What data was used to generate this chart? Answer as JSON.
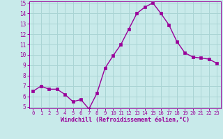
{
  "x": [
    0,
    1,
    2,
    3,
    4,
    5,
    6,
    7,
    8,
    9,
    10,
    11,
    12,
    13,
    14,
    15,
    16,
    17,
    18,
    19,
    20,
    21,
    22,
    23
  ],
  "y": [
    6.5,
    7.0,
    6.7,
    6.7,
    6.2,
    5.5,
    5.7,
    4.8,
    6.3,
    8.7,
    9.9,
    11.0,
    12.5,
    14.0,
    14.6,
    15.0,
    14.0,
    12.9,
    11.3,
    10.2,
    9.8,
    9.7,
    9.6,
    9.2
  ],
  "line_color": "#990099",
  "marker": "s",
  "markersize": 2.5,
  "linewidth": 1.0,
  "bg_color": "#c8eaea",
  "grid_color": "#aad4d4",
  "xlabel": "Windchill (Refroidissement éolien,°C)",
  "tick_color": "#990099",
  "ylim": [
    5,
    15
  ],
  "xlim": [
    -0.5,
    23.5
  ],
  "yticks": [
    5,
    6,
    7,
    8,
    9,
    10,
    11,
    12,
    13,
    14,
    15
  ],
  "xticks": [
    0,
    1,
    2,
    3,
    4,
    5,
    6,
    7,
    8,
    9,
    10,
    11,
    12,
    13,
    14,
    15,
    16,
    17,
    18,
    19,
    20,
    21,
    22,
    23
  ]
}
